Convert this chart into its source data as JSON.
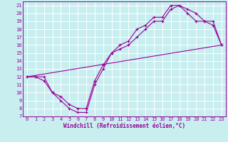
{
  "xlabel": "Windchill (Refroidissement éolien,°C)",
  "bg_color": "#c8eef0",
  "grid_color": "#ffffff",
  "line_color": "#990099",
  "xlim": [
    -0.5,
    23.5
  ],
  "ylim": [
    7,
    21.5
  ],
  "xticks": [
    0,
    1,
    2,
    3,
    4,
    5,
    6,
    7,
    8,
    9,
    10,
    11,
    12,
    13,
    14,
    15,
    16,
    17,
    18,
    19,
    20,
    21,
    22,
    23
  ],
  "yticks": [
    7,
    8,
    9,
    10,
    11,
    12,
    13,
    14,
    15,
    16,
    17,
    18,
    19,
    20,
    21
  ],
  "line1_x": [
    0,
    1,
    2,
    3,
    4,
    5,
    6,
    7,
    8,
    9,
    10,
    11,
    12,
    13,
    14,
    15,
    16,
    17,
    18,
    19,
    20,
    21,
    22,
    23
  ],
  "line1_y": [
    12,
    12,
    12,
    10,
    9,
    8,
    7.5,
    7.5,
    11,
    13,
    15,
    16,
    16.5,
    18,
    18.5,
    19.5,
    19.5,
    21,
    21,
    20.5,
    20,
    19,
    19,
    16
  ],
  "line2_x": [
    0,
    1,
    2,
    3,
    4,
    5,
    6,
    7,
    8,
    9,
    10,
    11,
    12,
    13,
    14,
    15,
    16,
    17,
    18,
    19,
    20,
    21,
    22,
    23
  ],
  "line2_y": [
    12,
    12,
    11.5,
    10,
    9.5,
    8.5,
    8,
    8,
    11.5,
    13.5,
    15,
    15.5,
    16,
    17,
    18,
    19,
    19,
    20.5,
    21,
    20,
    19,
    19,
    18.5,
    16
  ],
  "line3_x": [
    0,
    23
  ],
  "line3_y": [
    12,
    16
  ],
  "tick_fontsize": 5.0,
  "xlabel_fontsize": 5.5
}
